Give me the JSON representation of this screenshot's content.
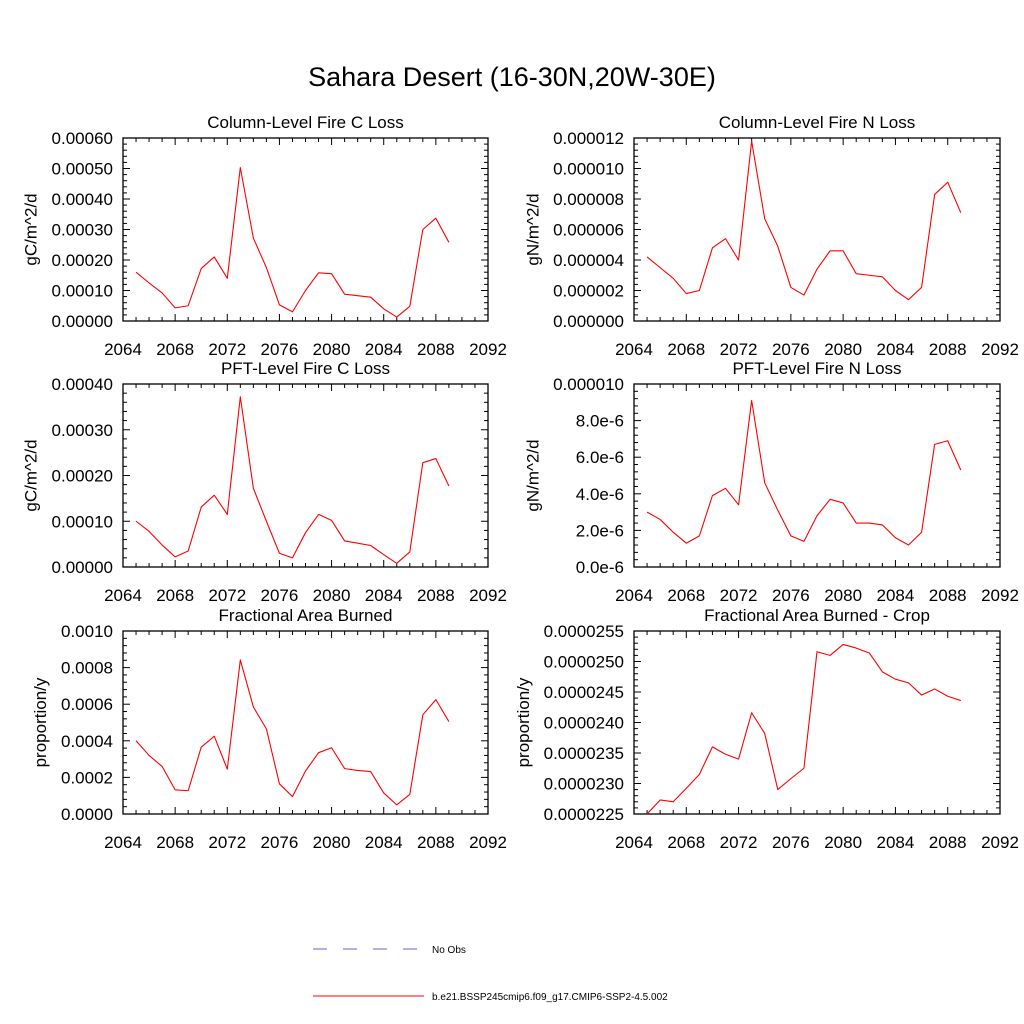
{
  "figure": {
    "title": "Sahara Desert (16-30N,20W-30E)"
  },
  "legend": {
    "items": [
      {
        "label": "No Obs",
        "color": "#6666cc",
        "style": "dashed"
      },
      {
        "label": "b.e21.BSSP245cmip6.f09_g17.CMIP6-SSP2-4.5.002",
        "color": "#ff0000",
        "style": "solid"
      }
    ]
  },
  "chart_data": [
    {
      "type": "line",
      "title": "Column-Level Fire C Loss",
      "xlabel": "",
      "ylabel": "gC/m^2/d",
      "xlim": [
        2064,
        2092
      ],
      "ylim": [
        0,
        0.0006
      ],
      "xticks": [
        "2064",
        "2068",
        "2072",
        "2076",
        "2080",
        "2084",
        "2088",
        "2092"
      ],
      "yticks": [
        "0.00000",
        "0.00010",
        "0.00020",
        "0.00030",
        "0.00040",
        "0.00050",
        "0.00060"
      ],
      "x": [
        2065,
        2066,
        2067,
        2068,
        2069,
        2070,
        2071,
        2072,
        2073,
        2074,
        2075,
        2076,
        2077,
        2078,
        2079,
        2080,
        2081,
        2082,
        2083,
        2084,
        2085,
        2086,
        2087,
        2088,
        2089
      ],
      "series": [
        {
          "color": "#ff0000",
          "values": [
            0.00016,
            0.000125,
            9.2e-05,
            4.3e-05,
            5e-05,
            0.000172,
            0.00021,
            0.00014,
            0.000503,
            0.000272,
            0.000175,
            5.3e-05,
            3e-05,
            0.0001,
            0.000158,
            0.000155,
            8.8e-05,
            8.3e-05,
            7.8e-05,
            4e-05,
            1.3e-05,
            4.8e-05,
            0.0003,
            0.000337,
            0.000258
          ]
        }
      ]
    },
    {
      "type": "line",
      "title": "Column-Level Fire N Loss",
      "xlabel": "",
      "ylabel": "gN/m^2/d",
      "xlim": [
        2064,
        2092
      ],
      "ylim": [
        0,
        1.2e-05
      ],
      "xticks": [
        "2064",
        "2068",
        "2072",
        "2076",
        "2080",
        "2084",
        "2088",
        "2092"
      ],
      "yticks": [
        "0.000000",
        "0.000002",
        "0.000004",
        "0.000006",
        "0.000008",
        "0.000010",
        "0.000012"
      ],
      "x": [
        2065,
        2066,
        2067,
        2068,
        2069,
        2070,
        2071,
        2072,
        2073,
        2074,
        2075,
        2076,
        2077,
        2078,
        2079,
        2080,
        2081,
        2082,
        2083,
        2084,
        2085,
        2086,
        2087,
        2088,
        2089
      ],
      "series": [
        {
          "color": "#ff0000",
          "values": [
            4.2e-06,
            3.5e-06,
            2.8e-06,
            1.8e-06,
            2e-06,
            4.8e-06,
            5.4e-06,
            4e-06,
            1.18e-05,
            6.7e-06,
            4.9e-06,
            2.2e-06,
            1.7e-06,
            3.4e-06,
            4.6e-06,
            4.6e-06,
            3.1e-06,
            3e-06,
            2.9e-06,
            2e-06,
            1.4e-06,
            2.2e-06,
            8.3e-06,
            9.1e-06,
            7.1e-06
          ]
        }
      ]
    },
    {
      "type": "line",
      "title": "PFT-Level Fire C Loss",
      "xlabel": "",
      "ylabel": "gC/m^2/d",
      "xlim": [
        2064,
        2092
      ],
      "ylim": [
        0,
        0.0004
      ],
      "xticks": [
        "2064",
        "2068",
        "2072",
        "2076",
        "2080",
        "2084",
        "2088",
        "2092"
      ],
      "yticks": [
        "0.00000",
        "0.00010",
        "0.00020",
        "0.00030",
        "0.00040"
      ],
      "x": [
        2065,
        2066,
        2067,
        2068,
        2069,
        2070,
        2071,
        2072,
        2073,
        2074,
        2075,
        2076,
        2077,
        2078,
        2079,
        2080,
        2081,
        2082,
        2083,
        2084,
        2085,
        2086,
        2087,
        2088,
        2089
      ],
      "series": [
        {
          "color": "#ff0000",
          "values": [
            0.0001,
            7.8e-05,
            4.8e-05,
            2.2e-05,
            3.5e-05,
            0.000131,
            0.000157,
            0.000115,
            0.000372,
            0.000172,
            0.0001,
            3e-05,
            2e-05,
            7.5e-05,
            0.000115,
            0.000102,
            5.7e-05,
            5.2e-05,
            4.7e-05,
            2.7e-05,
            8e-06,
            3.3e-05,
            0.000228,
            0.000237,
            0.000177
          ]
        }
      ]
    },
    {
      "type": "line",
      "title": "PFT-Level Fire N Loss",
      "xlabel": "",
      "ylabel": "gN/m^2/d",
      "xlim": [
        2064,
        2092
      ],
      "ylim": [
        0,
        1e-05
      ],
      "xticks": [
        "2064",
        "2068",
        "2072",
        "2076",
        "2080",
        "2084",
        "2088",
        "2092"
      ],
      "yticks": [
        "0.0e-6",
        "2.0e-6",
        "4.0e-6",
        "6.0e-6",
        "8.0e-6",
        "0.000010"
      ],
      "x": [
        2065,
        2066,
        2067,
        2068,
        2069,
        2070,
        2071,
        2072,
        2073,
        2074,
        2075,
        2076,
        2077,
        2078,
        2079,
        2080,
        2081,
        2082,
        2083,
        2084,
        2085,
        2086,
        2087,
        2088,
        2089
      ],
      "series": [
        {
          "color": "#ff0000",
          "values": [
            3e-06,
            2.6e-06,
            1.9e-06,
            1.3e-06,
            1.7e-06,
            3.9e-06,
            4.3e-06,
            3.4e-06,
            9.1e-06,
            4.6e-06,
            3.1e-06,
            1.7e-06,
            1.4e-06,
            2.8e-06,
            3.7e-06,
            3.5e-06,
            2.4e-06,
            2.4e-06,
            2.3e-06,
            1.6e-06,
            1.2e-06,
            1.9e-06,
            6.7e-06,
            6.9e-06,
            5.3e-06
          ]
        }
      ]
    },
    {
      "type": "line",
      "title": "Fractional Area Burned",
      "xlabel": "",
      "ylabel": "proportion/y",
      "xlim": [
        2064,
        2092
      ],
      "ylim": [
        0,
        0.001
      ],
      "xticks": [
        "2064",
        "2068",
        "2072",
        "2076",
        "2080",
        "2084",
        "2088",
        "2092"
      ],
      "yticks": [
        "0.0000",
        "0.0002",
        "0.0004",
        "0.0006",
        "0.0008",
        "0.0010"
      ],
      "x": [
        2065,
        2066,
        2067,
        2068,
        2069,
        2070,
        2071,
        2072,
        2073,
        2074,
        2075,
        2076,
        2077,
        2078,
        2079,
        2080,
        2081,
        2082,
        2083,
        2084,
        2085,
        2086,
        2087,
        2088,
        2089
      ],
      "series": [
        {
          "color": "#ff0000",
          "values": [
            0.0004,
            0.00032,
            0.00026,
            0.000132,
            0.000127,
            0.000365,
            0.000425,
            0.000245,
            0.000842,
            0.000585,
            0.000465,
            0.000165,
            9.5e-05,
            0.000235,
            0.000335,
            0.000362,
            0.000248,
            0.000238,
            0.000232,
            0.000115,
            5e-05,
            0.000107,
            0.000542,
            0.000625,
            0.000505
          ]
        }
      ]
    },
    {
      "type": "line",
      "title": "Fractional Area Burned - Crop",
      "xlabel": "",
      "ylabel": "proportion/y",
      "xlim": [
        2064,
        2092
      ],
      "ylim": [
        2.25e-05,
        2.55e-05
      ],
      "xticks": [
        "2064",
        "2068",
        "2072",
        "2076",
        "2080",
        "2084",
        "2088",
        "2092"
      ],
      "yticks": [
        "0.0000225",
        "0.0000230",
        "0.0000235",
        "0.0000240",
        "0.0000245",
        "0.0000250",
        "0.0000255"
      ],
      "x": [
        2065,
        2066,
        2067,
        2068,
        2069,
        2070,
        2071,
        2072,
        2073,
        2074,
        2075,
        2076,
        2077,
        2078,
        2079,
        2080,
        2081,
        2082,
        2083,
        2084,
        2085,
        2086,
        2087,
        2088,
        2089
      ],
      "series": [
        {
          "color": "#ff0000",
          "values": [
            2.25e-05,
            2.273e-05,
            2.27e-05,
            2.292e-05,
            2.315e-05,
            2.36e-05,
            2.348e-05,
            2.34e-05,
            2.416e-05,
            2.382e-05,
            2.29e-05,
            2.308e-05,
            2.325e-05,
            2.516e-05,
            2.51e-05,
            2.528e-05,
            2.522e-05,
            2.514e-05,
            2.483e-05,
            2.471e-05,
            2.465e-05,
            2.445e-05,
            2.455e-05,
            2.443e-05,
            2.436e-05
          ]
        }
      ]
    }
  ]
}
